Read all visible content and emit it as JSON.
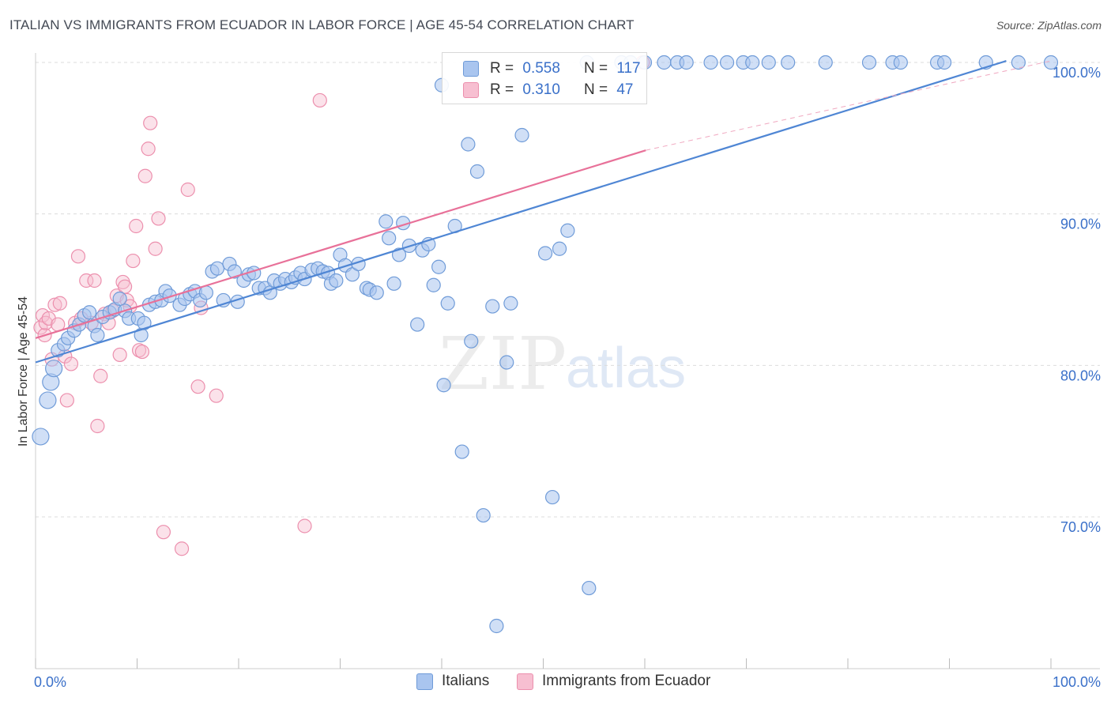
{
  "title": "ITALIAN VS IMMIGRANTS FROM ECUADOR IN LABOR FORCE | AGE 45-54 CORRELATION CHART",
  "source": "Source: ZipAtlas.com",
  "watermark": {
    "zip": "ZIP",
    "atlas": "atlas"
  },
  "legend": {
    "r_label": "R =",
    "n_label": "N =",
    "items": [
      {
        "name": "Italians",
        "r": "0.558",
        "n": "117",
        "fill": "#a9c5ef",
        "stroke": "#6f9bd8"
      },
      {
        "name": "Immigrants from Ecuador",
        "r": "0.310",
        "n": "47",
        "fill": "#f7bfd1",
        "stroke": "#ec8fad"
      }
    ]
  },
  "chart_data": {
    "type": "scatter",
    "xlabel": "",
    "ylabel": "In Labor Force | Age 45-54",
    "xlim": [
      0,
      100
    ],
    "ylim": [
      61,
      101.5
    ],
    "x_tick_labels": [
      "0.0%",
      "100.0%"
    ],
    "y_ticks": [
      70,
      80,
      90,
      100
    ],
    "y_tick_labels": [
      "70.0%",
      "80.0%",
      "90.0%",
      "100.0%"
    ],
    "grid": true,
    "series": [
      {
        "name": "Italians",
        "color": "#4f86d4",
        "trend": {
          "x": [
            0,
            95.6
          ],
          "y": [
            80.2,
            100.1
          ]
        },
        "points": [
          [
            0.5,
            75.3
          ],
          [
            1.2,
            77.7
          ],
          [
            1.5,
            78.9
          ],
          [
            1.8,
            79.8
          ],
          [
            2.2,
            81.0
          ],
          [
            2.8,
            81.4
          ],
          [
            3.2,
            81.8
          ],
          [
            3.8,
            82.3
          ],
          [
            4.3,
            82.7
          ],
          [
            4.8,
            83.3
          ],
          [
            5.3,
            83.5
          ],
          [
            5.8,
            82.6
          ],
          [
            6.1,
            82.0
          ],
          [
            6.6,
            83.2
          ],
          [
            7.3,
            83.5
          ],
          [
            7.8,
            83.7
          ],
          [
            8.3,
            84.4
          ],
          [
            8.8,
            83.6
          ],
          [
            9.2,
            83.1
          ],
          [
            10.1,
            83.1
          ],
          [
            10.4,
            82.0
          ],
          [
            10.7,
            82.8
          ],
          [
            11.2,
            84.0
          ],
          [
            11.8,
            84.2
          ],
          [
            12.4,
            84.3
          ],
          [
            12.8,
            84.9
          ],
          [
            13.2,
            84.6
          ],
          [
            14.2,
            84.0
          ],
          [
            14.7,
            84.4
          ],
          [
            15.2,
            84.7
          ],
          [
            15.7,
            84.9
          ],
          [
            16.2,
            84.3
          ],
          [
            16.8,
            84.8
          ],
          [
            17.4,
            86.2
          ],
          [
            17.9,
            86.4
          ],
          [
            18.5,
            84.3
          ],
          [
            19.1,
            86.7
          ],
          [
            19.6,
            86.2
          ],
          [
            19.9,
            84.2
          ],
          [
            20.5,
            85.6
          ],
          [
            21.0,
            86.0
          ],
          [
            21.5,
            86.1
          ],
          [
            22.0,
            85.1
          ],
          [
            22.6,
            85.1
          ],
          [
            23.1,
            84.8
          ],
          [
            23.5,
            85.6
          ],
          [
            24.1,
            85.4
          ],
          [
            24.6,
            85.7
          ],
          [
            25.2,
            85.5
          ],
          [
            25.6,
            85.8
          ],
          [
            26.1,
            86.1
          ],
          [
            26.5,
            85.7
          ],
          [
            27.2,
            86.3
          ],
          [
            27.8,
            86.4
          ],
          [
            28.3,
            86.2
          ],
          [
            28.8,
            86.1
          ],
          [
            29.1,
            85.4
          ],
          [
            29.6,
            85.6
          ],
          [
            30.0,
            87.3
          ],
          [
            30.5,
            86.6
          ],
          [
            31.2,
            86.0
          ],
          [
            31.8,
            86.7
          ],
          [
            32.6,
            85.1
          ],
          [
            32.9,
            85.0
          ],
          [
            33.6,
            84.8
          ],
          [
            34.5,
            89.5
          ],
          [
            34.8,
            88.4
          ],
          [
            35.3,
            85.4
          ],
          [
            35.8,
            87.3
          ],
          [
            36.2,
            89.4
          ],
          [
            36.8,
            87.9
          ],
          [
            37.6,
            82.7
          ],
          [
            38.1,
            87.6
          ],
          [
            38.7,
            88.0
          ],
          [
            39.2,
            85.3
          ],
          [
            39.7,
            86.5
          ],
          [
            40.2,
            78.7
          ],
          [
            40.6,
            84.1
          ],
          [
            41.3,
            89.2
          ],
          [
            42.0,
            74.3
          ],
          [
            42.6,
            94.6
          ],
          [
            42.9,
            81.6
          ],
          [
            43.5,
            92.8
          ],
          [
            44.1,
            70.1
          ],
          [
            45.0,
            83.9
          ],
          [
            45.4,
            62.8
          ],
          [
            46.8,
            84.1
          ],
          [
            46.4,
            80.2
          ],
          [
            47.9,
            95.2
          ],
          [
            50.2,
            87.4
          ],
          [
            50.9,
            71.3
          ],
          [
            51.6,
            87.7
          ],
          [
            52.4,
            88.9
          ],
          [
            54.5,
            65.3
          ],
          [
            54.3,
            100.0
          ],
          [
            57.7,
            100.0
          ],
          [
            58.6,
            100.0
          ],
          [
            60.0,
            100.0
          ],
          [
            61.9,
            100.0
          ],
          [
            63.2,
            100.0
          ],
          [
            64.1,
            100.0
          ],
          [
            66.5,
            100.0
          ],
          [
            68.1,
            100.0
          ],
          [
            69.7,
            100.0
          ],
          [
            70.6,
            100.0
          ],
          [
            72.2,
            100.0
          ],
          [
            74.1,
            100.0
          ],
          [
            77.8,
            100.0
          ],
          [
            82.1,
            100.0
          ],
          [
            84.4,
            100.0
          ],
          [
            85.2,
            100.0
          ],
          [
            88.8,
            100.0
          ],
          [
            89.5,
            100.0
          ],
          [
            93.6,
            100.0
          ],
          [
            96.8,
            100.0
          ],
          [
            100.0,
            100.0
          ],
          [
            40.0,
            98.5
          ]
        ]
      },
      {
        "name": "Immigrants from Ecuador",
        "color": "#e87199",
        "trend": {
          "x": [
            0,
            60.1
          ],
          "y": [
            81.8,
            94.2
          ]
        },
        "trend_dashed": {
          "x": [
            60.1,
            100
          ],
          "y": [
            94.2,
            100.1
          ]
        },
        "points": [
          [
            0.5,
            82.5
          ],
          [
            0.7,
            83.3
          ],
          [
            0.9,
            82.0
          ],
          [
            1.0,
            82.8
          ],
          [
            1.3,
            83.1
          ],
          [
            1.6,
            80.4
          ],
          [
            1.9,
            84.0
          ],
          [
            2.2,
            82.7
          ],
          [
            2.4,
            84.1
          ],
          [
            2.9,
            80.6
          ],
          [
            3.1,
            77.7
          ],
          [
            3.5,
            80.1
          ],
          [
            3.9,
            82.8
          ],
          [
            4.2,
            87.2
          ],
          [
            4.5,
            83.1
          ],
          [
            5.0,
            85.6
          ],
          [
            5.5,
            82.8
          ],
          [
            5.8,
            85.6
          ],
          [
            6.1,
            76.0
          ],
          [
            6.4,
            79.3
          ],
          [
            6.8,
            83.4
          ],
          [
            7.2,
            82.8
          ],
          [
            7.6,
            83.6
          ],
          [
            8.0,
            84.6
          ],
          [
            8.3,
            80.7
          ],
          [
            8.6,
            85.5
          ],
          [
            8.8,
            85.2
          ],
          [
            9.0,
            84.3
          ],
          [
            9.3,
            83.9
          ],
          [
            9.6,
            86.9
          ],
          [
            9.9,
            89.2
          ],
          [
            10.2,
            81.0
          ],
          [
            10.5,
            80.9
          ],
          [
            10.8,
            92.5
          ],
          [
            11.1,
            94.3
          ],
          [
            11.3,
            96.0
          ],
          [
            11.8,
            87.7
          ],
          [
            12.1,
            89.7
          ],
          [
            12.6,
            69.0
          ],
          [
            14.4,
            67.9
          ],
          [
            15.0,
            91.6
          ],
          [
            16.0,
            78.6
          ],
          [
            16.3,
            83.8
          ],
          [
            17.8,
            78.0
          ],
          [
            26.5,
            69.4
          ],
          [
            28.0,
            97.5
          ],
          [
            59.8,
            100.0
          ]
        ]
      }
    ]
  }
}
